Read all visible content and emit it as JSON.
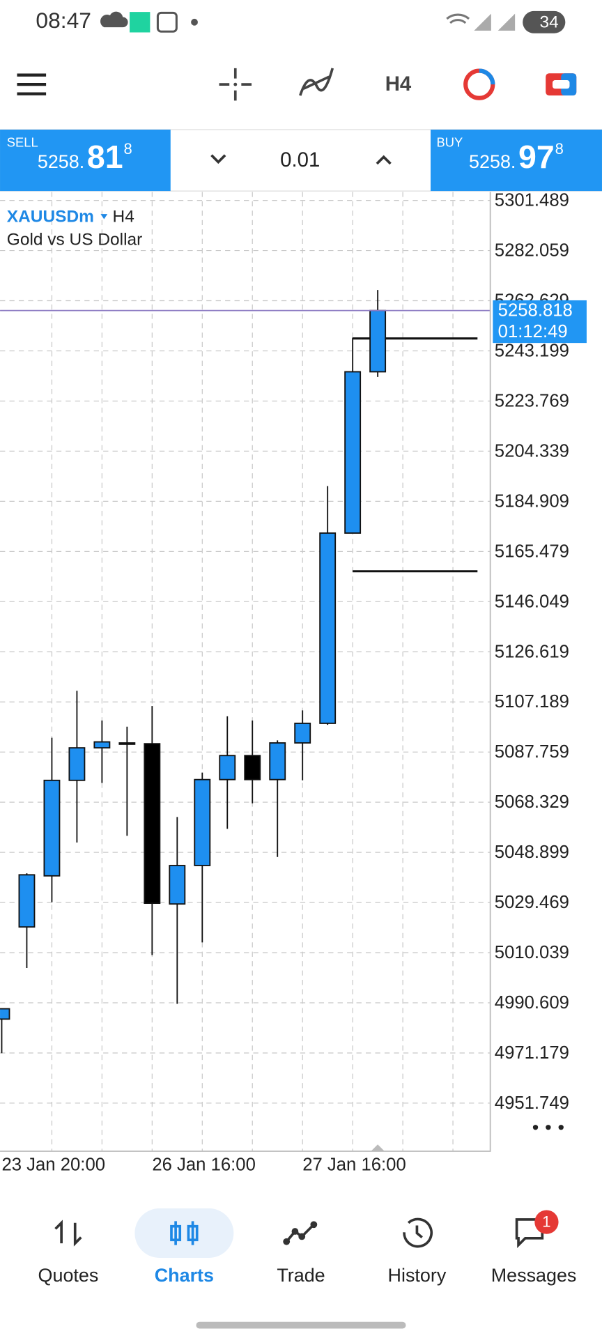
{
  "status_bar": {
    "time": "08:47",
    "battery": "34"
  },
  "toolbar": {
    "timeframe": "H4"
  },
  "trade_panel": {
    "sell": {
      "label": "SELL",
      "price_head": "5258.",
      "price_big": "81",
      "price_tail": "8"
    },
    "lot": "0.01",
    "buy": {
      "label": "BUY",
      "price_head": "5258.",
      "price_big": "97",
      "price_tail": "8"
    }
  },
  "chart_data": {
    "type": "candlestick",
    "symbol": "XAUUSDm",
    "timeframe": "H4",
    "description": "Gold vs US Dollar",
    "categories": [
      "23 Jan 20:00",
      null,
      null,
      null,
      null,
      null,
      "26 Jan 16:00",
      null,
      null,
      null,
      null,
      null,
      "27 Jan 16:00",
      null,
      null,
      null
    ],
    "open": [
      4984.3,
      5020.0,
      5039.8,
      5076.8,
      5089.4,
      5091.3,
      5091.0,
      5028.9,
      5043.8,
      5077.1,
      5086.4,
      5077.1,
      5091.3,
      5098.9,
      5172.6,
      5235.1
    ],
    "high": [
      4988.3,
      5040.8,
      5093.3,
      5111.5,
      5100.0,
      5097.6,
      5105.6,
      5062.6,
      5079.8,
      5101.6,
      5100.0,
      5092.3,
      5103.9,
      5190.8,
      5248.3,
      5266.8
    ],
    "low": [
      4971.1,
      5004.1,
      5029.6,
      5052.7,
      5075.8,
      5055.3,
      5009.1,
      4990.2,
      5014.0,
      5058.0,
      5067.9,
      5047.1,
      5076.8,
      5098.3,
      5172.6,
      5233.1
    ],
    "close": [
      4988.3,
      5040.2,
      5076.8,
      5089.4,
      5091.7,
      5091.3,
      5029.2,
      5043.8,
      5077.1,
      5086.4,
      5077.1,
      5091.3,
      5098.9,
      5172.6,
      5235.1,
      5258.818
    ],
    "up_color": "#1e8ff0",
    "down_color": "#000000",
    "ylim": [
      4933.1,
      5304.8
    ],
    "yticks": [
      5301.489,
      5282.059,
      5262.629,
      5243.199,
      5223.769,
      5204.339,
      5184.909,
      5165.479,
      5146.049,
      5126.619,
      5107.189,
      5087.759,
      5068.329,
      5048.899,
      5029.469,
      5010.039,
      4990.609,
      4971.179,
      4951.749
    ],
    "grid": true,
    "current_price": 5258.818,
    "countdown": "01:12:49",
    "levels": [
      5248.0,
      5157.8
    ]
  },
  "nav": {
    "items": [
      {
        "label": "Quotes"
      },
      {
        "label": "Charts"
      },
      {
        "label": "Trade"
      },
      {
        "label": "History"
      },
      {
        "label": "Messages"
      }
    ],
    "messages_badge": "1"
  }
}
